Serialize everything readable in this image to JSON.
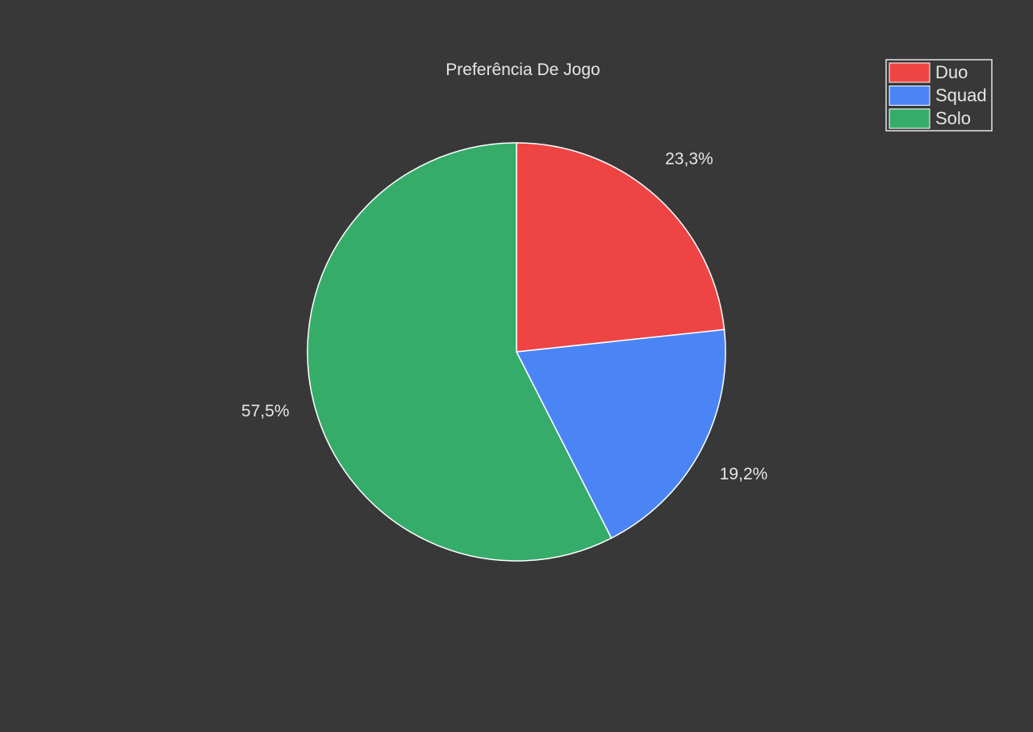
{
  "chart_data": {
    "type": "pie",
    "title": "Preferência De Jogo",
    "start_angle_deg": 90,
    "direction": "clockwise",
    "legend_position": "top-right",
    "slices": [
      {
        "name": "Duo",
        "value": 23.3,
        "label": "23,3%",
        "color": "#ef4444"
      },
      {
        "name": "Squad",
        "value": 19.2,
        "label": "19,2%",
        "color": "#4b85f5"
      },
      {
        "name": "Solo",
        "value": 57.5,
        "label": "57,5%",
        "color": "#36ac6b"
      }
    ]
  },
  "colors": {
    "background": "#383838",
    "text": "#e6e6e6",
    "slice_edge": "#ffffff"
  }
}
